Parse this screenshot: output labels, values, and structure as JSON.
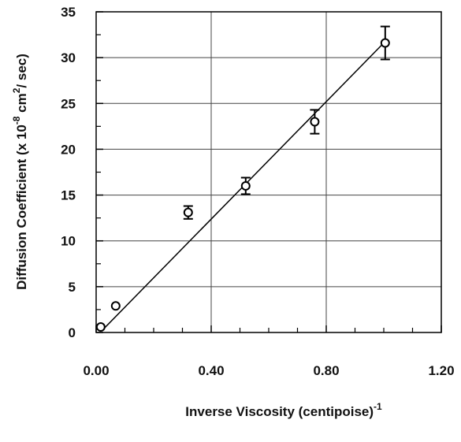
{
  "chart_data": {
    "type": "scatter",
    "x": [
      0.016,
      0.068,
      0.32,
      0.52,
      0.76,
      1.005
    ],
    "values": [
      0.6,
      2.9,
      13.1,
      16.0,
      23.0,
      31.6
    ],
    "errors": [
      null,
      null,
      0.7,
      0.9,
      1.3,
      1.8
    ],
    "fit": {
      "x": [
        0.02,
        1.0
      ],
      "values": [
        0.2,
        31.6
      ]
    },
    "color": "#000000",
    "xlim": [
      0,
      1.2
    ],
    "xticks": [
      {
        "value": 0,
        "label": "0.00"
      },
      {
        "value": 0.4,
        "label": "0.40"
      },
      {
        "value": 0.8,
        "label": "0.80"
      },
      {
        "value": 1.2,
        "label": "1.20"
      }
    ],
    "ylim": [
      0,
      35
    ],
    "yticks": [
      0,
      5,
      10,
      15,
      20,
      25,
      30,
      35
    ],
    "xlabel": [
      "Inverse Viscosity (centipoise)",
      "-1"
    ],
    "ylabel": [
      "Diffusion Coefficient (x 10",
      "-8",
      " cm",
      "2",
      "/ sec)"
    ],
    "grid": true
  }
}
